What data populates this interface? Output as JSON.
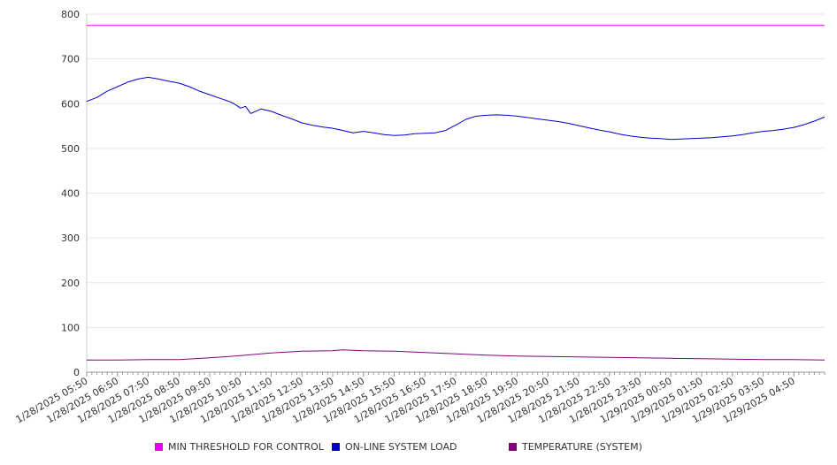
{
  "chart_data": {
    "type": "line",
    "ylim": [
      0,
      800
    ],
    "y_ticks": [
      0,
      100,
      200,
      300,
      400,
      500,
      600,
      700,
      800
    ],
    "x_ticks": [
      "1/28/2025 05:50",
      "1/28/2025 06:50",
      "1/28/2025 07:50",
      "1/28/2025 08:50",
      "1/28/2025 09:50",
      "1/28/2025 10:50",
      "1/28/2025 11:50",
      "1/28/2025 12:50",
      "1/28/2025 13:50",
      "1/28/2025 14:50",
      "1/28/2025 15:50",
      "1/28/2025 16:50",
      "1/28/2025 17:50",
      "1/28/2025 18:50",
      "1/28/2025 19:50",
      "1/28/2025 20:50",
      "1/28/2025 21:50",
      "1/28/2025 22:50",
      "1/28/2025 23:50",
      "1/29/2025 00:50",
      "1/29/2025 01:50",
      "1/29/2025 02:50",
      "1/29/2025 03:50",
      "1/29/2025 04:50"
    ],
    "x_range": [
      "1/28/2025 05:50",
      "1/29/2025 05:50"
    ],
    "grid": "horizontal",
    "legend_position": "bottom",
    "series": [
      {
        "name": "MIN THRESHOLD FOR CONTROL",
        "color": "#e600e6",
        "x": [
          "1/28/2025 05:50",
          "1/29/2025 05:50"
        ],
        "values": [
          775,
          775
        ]
      },
      {
        "name": "ON-LINE SYSTEM LOAD",
        "color": "#0000cc",
        "x": [
          "1/28/2025 05:50",
          "1/28/2025 06:10",
          "1/28/2025 06:30",
          "1/28/2025 06:50",
          "1/28/2025 07:10",
          "1/28/2025 07:30",
          "1/28/2025 07:50",
          "1/28/2025 08:10",
          "1/28/2025 08:30",
          "1/28/2025 08:50",
          "1/28/2025 09:10",
          "1/28/2025 09:30",
          "1/28/2025 09:50",
          "1/28/2025 10:10",
          "1/28/2025 10:30",
          "1/28/2025 10:40",
          "1/28/2025 10:50",
          "1/28/2025 11:00",
          "1/28/2025 11:10",
          "1/28/2025 11:30",
          "1/28/2025 11:50",
          "1/28/2025 12:10",
          "1/28/2025 12:30",
          "1/28/2025 12:50",
          "1/28/2025 13:10",
          "1/28/2025 13:30",
          "1/28/2025 13:50",
          "1/28/2025 14:10",
          "1/28/2025 14:30",
          "1/28/2025 14:50",
          "1/28/2025 15:10",
          "1/28/2025 15:30",
          "1/28/2025 15:50",
          "1/28/2025 16:10",
          "1/28/2025 16:30",
          "1/28/2025 16:50",
          "1/28/2025 17:10",
          "1/28/2025 17:30",
          "1/28/2025 17:50",
          "1/28/2025 18:10",
          "1/28/2025 18:30",
          "1/28/2025 18:50",
          "1/28/2025 19:10",
          "1/28/2025 19:30",
          "1/28/2025 19:50",
          "1/28/2025 20:10",
          "1/28/2025 20:30",
          "1/28/2025 20:50",
          "1/28/2025 21:10",
          "1/28/2025 21:30",
          "1/28/2025 21:50",
          "1/28/2025 22:10",
          "1/28/2025 22:30",
          "1/28/2025 22:50",
          "1/28/2025 23:10",
          "1/28/2025 23:30",
          "1/28/2025 23:50",
          "1/29/2025 00:10",
          "1/29/2025 00:30",
          "1/29/2025 00:50",
          "1/29/2025 01:10",
          "1/29/2025 01:30",
          "1/29/2025 01:50",
          "1/29/2025 02:10",
          "1/29/2025 02:30",
          "1/29/2025 02:50",
          "1/29/2025 03:10",
          "1/29/2025 03:30",
          "1/29/2025 03:50",
          "1/29/2025 04:10",
          "1/29/2025 04:30",
          "1/29/2025 04:50",
          "1/29/2025 05:10",
          "1/29/2025 05:30",
          "1/29/2025 05:50"
        ],
        "values": [
          605,
          614,
          628,
          638,
          648,
          655,
          659,
          655,
          650,
          646,
          638,
          628,
          620,
          612,
          604,
          598,
          590,
          594,
          578,
          588,
          583,
          574,
          566,
          557,
          552,
          548,
          545,
          540,
          535,
          538,
          535,
          531,
          529,
          530,
          533,
          534,
          535,
          540,
          552,
          565,
          572,
          574,
          575,
          574,
          572,
          569,
          566,
          563,
          560,
          556,
          551,
          546,
          541,
          537,
          532,
          528,
          525,
          523,
          522,
          520,
          521,
          522,
          523,
          524,
          526,
          528,
          531,
          535,
          538,
          540,
          543,
          547,
          553,
          561,
          570
        ]
      },
      {
        "name": "TEMPERATURE (SYSTEM)",
        "color": "#800080",
        "x": [
          "1/28/2025 05:50",
          "1/28/2025 06:50",
          "1/28/2025 07:50",
          "1/28/2025 08:50",
          "1/28/2025 09:50",
          "1/28/2025 10:50",
          "1/28/2025 11:50",
          "1/28/2025 12:50",
          "1/28/2025 13:50",
          "1/28/2025 14:10",
          "1/28/2025 14:50",
          "1/28/2025 15:50",
          "1/28/2025 16:50",
          "1/28/2025 17:50",
          "1/28/2025 18:50",
          "1/28/2025 19:50",
          "1/28/2025 20:50",
          "1/28/2025 21:50",
          "1/28/2025 22:50",
          "1/28/2025 23:50",
          "1/29/2025 00:50",
          "1/29/2025 01:50",
          "1/29/2025 02:50",
          "1/29/2025 03:50",
          "1/29/2025 04:50",
          "1/29/2025 05:50"
        ],
        "values": [
          27,
          27,
          28,
          28,
          32,
          37,
          43,
          47,
          48,
          50,
          48,
          47,
          44,
          41,
          38,
          36,
          35,
          34,
          33,
          32,
          31,
          30,
          29,
          28,
          28,
          27
        ]
      }
    ]
  }
}
